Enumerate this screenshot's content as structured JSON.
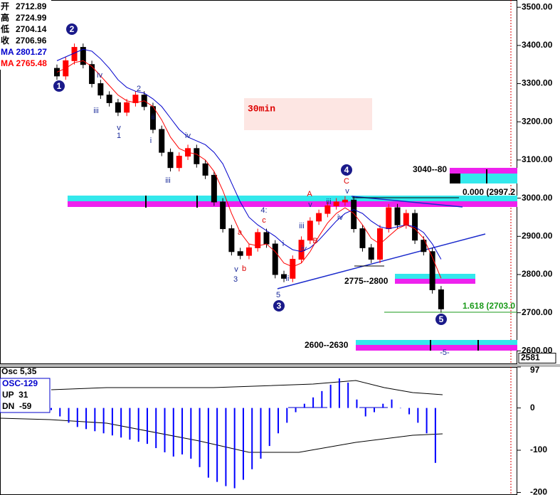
{
  "chart_data": [
    {
      "type": "candlestick",
      "title": "30min",
      "info_labels": [
        "开",
        "高",
        "低",
        "收"
      ],
      "info_values": [
        2712.89,
        2724.99,
        2704.14,
        2706.96
      ],
      "open": [
        3340,
        3320,
        3360,
        3395,
        3350,
        3300,
        3270,
        3250,
        3225,
        3250,
        3270,
        3240,
        3180,
        3120,
        3080,
        3110,
        3130,
        3090,
        3060,
        2990,
        2920,
        2860,
        2850,
        2870,
        2910,
        2880,
        2800,
        2790,
        2840,
        2890,
        2940,
        2960,
        2980,
        2990,
        2995,
        2920,
        2870,
        2840,
        2920,
        2975,
        2930,
        2960,
        2890,
        2860,
        2760
      ],
      "high": [
        3350,
        3370,
        3405,
        3405,
        3360,
        3310,
        3280,
        3260,
        3260,
        3280,
        3280,
        3250,
        3190,
        3130,
        3120,
        3140,
        3140,
        3100,
        3070,
        3000,
        2930,
        2870,
        2880,
        2920,
        2920,
        2890,
        2810,
        2850,
        2900,
        2950,
        2970,
        2990,
        3000,
        3005,
        3005,
        2930,
        2880,
        2930,
        2985,
        2985,
        2970,
        2970,
        2900,
        2870,
        2770
      ],
      "low": [
        3310,
        3310,
        3350,
        3340,
        3290,
        3260,
        3240,
        3215,
        3215,
        3240,
        3230,
        3170,
        3110,
        3070,
        3070,
        3100,
        3080,
        3050,
        2980,
        2910,
        2850,
        2840,
        2840,
        2860,
        2870,
        2790,
        2780,
        2780,
        2830,
        2880,
        2930,
        2950,
        2970,
        2980,
        2910,
        2860,
        2830,
        2830,
        2910,
        2920,
        2920,
        2880,
        2850,
        2750,
        2700
      ],
      "close": [
        3320,
        3360,
        3395,
        3350,
        3300,
        3270,
        3250,
        3225,
        3250,
        3270,
        3240,
        3180,
        3120,
        3080,
        3110,
        3130,
        3090,
        3060,
        2990,
        2920,
        2860,
        2850,
        2870,
        2910,
        2880,
        2800,
        2790,
        2840,
        2890,
        2940,
        2960,
        2980,
        2990,
        2995,
        2920,
        2870,
        2840,
        2920,
        2975,
        2930,
        2960,
        2890,
        2860,
        2760,
        2710
      ],
      "up_color": "#ff0000",
      "down_color": "#000000",
      "series": [
        {
          "name": "MA 2801.27",
          "color": "#0000cc",
          "values": [
            3360,
            3370,
            3380,
            3390,
            3385,
            3365,
            3340,
            3310,
            3290,
            3280,
            3275,
            3260,
            3240,
            3210,
            3180,
            3160,
            3150,
            3140,
            3120,
            3090,
            3040,
            2990,
            2950,
            2930,
            2915,
            2900,
            2880,
            2865,
            2860,
            2870,
            2890,
            2915,
            2940,
            2960,
            2970,
            2960,
            2940,
            2925,
            2920,
            2925,
            2930,
            2925,
            2910,
            2880,
            2840
          ]
        },
        {
          "name": "MA 2765.48",
          "color": "#ff0000",
          "values": [
            3330,
            3340,
            3355,
            3360,
            3345,
            3320,
            3295,
            3270,
            3255,
            3250,
            3255,
            3240,
            3205,
            3160,
            3130,
            3120,
            3115,
            3100,
            3070,
            3020,
            2960,
            2910,
            2880,
            2875,
            2880,
            2860,
            2830,
            2820,
            2830,
            2860,
            2900,
            2935,
            2960,
            2975,
            2960,
            2930,
            2895,
            2880,
            2900,
            2920,
            2930,
            2920,
            2895,
            2845,
            2790
          ]
        }
      ],
      "ylim": [
        2569,
        3519
      ],
      "yticks": [
        {
          "value": 2600,
          "label": "2600.00"
        },
        {
          "value": 2700,
          "label": "2700.00"
        },
        {
          "value": 2800,
          "label": "2800.00"
        },
        {
          "value": 2900,
          "label": "2900.00"
        },
        {
          "value": 3000,
          "label": "3000.00"
        },
        {
          "value": 3100,
          "label": "3100.00"
        },
        {
          "value": 3200,
          "label": "3200.00"
        },
        {
          "value": 3300,
          "label": "3300.00"
        },
        {
          "value": 3400,
          "label": "3400.00"
        },
        {
          "value": 3500,
          "label": "3500.00"
        }
      ],
      "last_price": 2581,
      "levels": [
        "3040--80",
        "0.000 (2997.2",
        "2775--2800",
        "1.618 (2703.0",
        "2600--2630"
      ],
      "annotations": [
        "1",
        "2",
        "3",
        "4",
        "5",
        "iv",
        "iii",
        "v",
        "1",
        "2",
        "ii",
        "i",
        "iii",
        "iv",
        "v",
        "3",
        "5",
        "ii",
        "i",
        "iii",
        "iv",
        "v",
        "iii",
        "iv",
        "v",
        "4:",
        "c",
        "a",
        "b",
        "A",
        "B",
        "C",
        "-5-"
      ]
    },
    {
      "type": "bar",
      "title": "Osc 5,35",
      "series_name": "OSC-129",
      "notes": [
        "UP  31",
        "DN  -59"
      ],
      "color": "#0000ff",
      "values": [
        -5,
        -20,
        -35,
        -45,
        -50,
        -55,
        -60,
        -65,
        -70,
        -75,
        -80,
        -85,
        -95,
        -105,
        -115,
        -110,
        -120,
        -140,
        -165,
        -175,
        -185,
        -190,
        -170,
        -145,
        -120,
        -90,
        -60,
        -35,
        -10,
        10,
        25,
        40,
        55,
        70,
        60,
        20,
        -20,
        -10,
        10,
        20,
        0,
        -15,
        -35,
        -60,
        -130
      ],
      "ylim": [
        -206,
        97
      ],
      "yticks": [
        97,
        0,
        -100,
        -200
      ]
    }
  ]
}
